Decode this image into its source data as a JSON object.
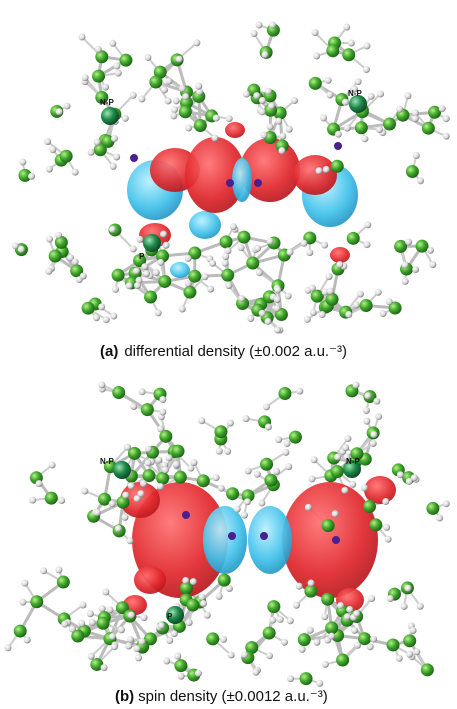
{
  "panels": [
    {
      "atom_labels": [
        "N-P",
        "N-P",
        "P"
      ],
      "caption_label": "(a)",
      "caption_text": "differential density (±0.002 a.u.⁻³)"
    },
    {
      "atom_labels": [
        "N-P",
        "N-P",
        "P"
      ],
      "caption_label": "(b)",
      "caption_text": "spin density (±0.0012 a.u.⁻³)"
    }
  ]
}
